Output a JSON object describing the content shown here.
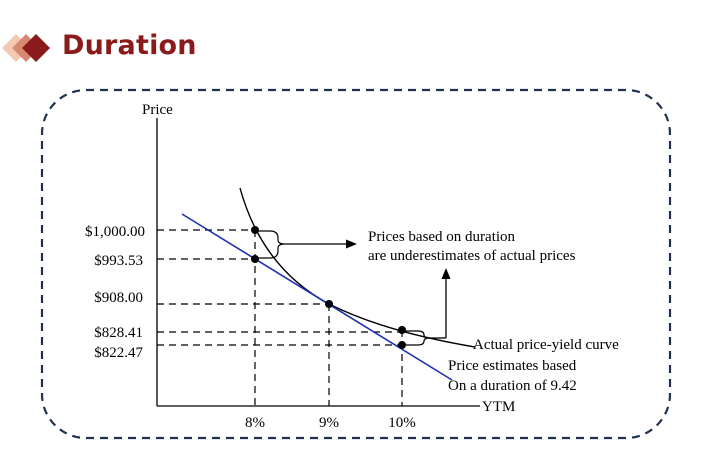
{
  "page": {
    "title": "Duration"
  },
  "chart_data": {
    "type": "line",
    "ylabel": "Price",
    "xlabel": "YTM",
    "x_ticks": [
      "8%",
      "9%",
      "10%"
    ],
    "y_ticks": [
      "$1,000.00",
      "$993.53",
      "$908.00",
      "$828.41",
      "$822.47"
    ],
    "series": [
      {
        "name": "Actual price-yield curve",
        "x": [
          8,
          9,
          10
        ],
        "y": [
          1000.0,
          908.0,
          828.41
        ]
      },
      {
        "name": "Price estimates based On a duration of 9.42",
        "x": [
          8,
          9,
          10
        ],
        "y": [
          993.53,
          908.0,
          822.47
        ]
      }
    ],
    "annotations": {
      "underestimate_line1": "Prices based on duration",
      "underestimate_line2": "are underestimates of actual prices",
      "curve_label": "Actual price-yield curve",
      "tangent_line1": "Price estimates based",
      "tangent_line2": "On a duration of 9.42"
    },
    "colors": {
      "curve": "#000000",
      "tangent": "#1f2fb0",
      "title": "#8b1a1a"
    }
  }
}
